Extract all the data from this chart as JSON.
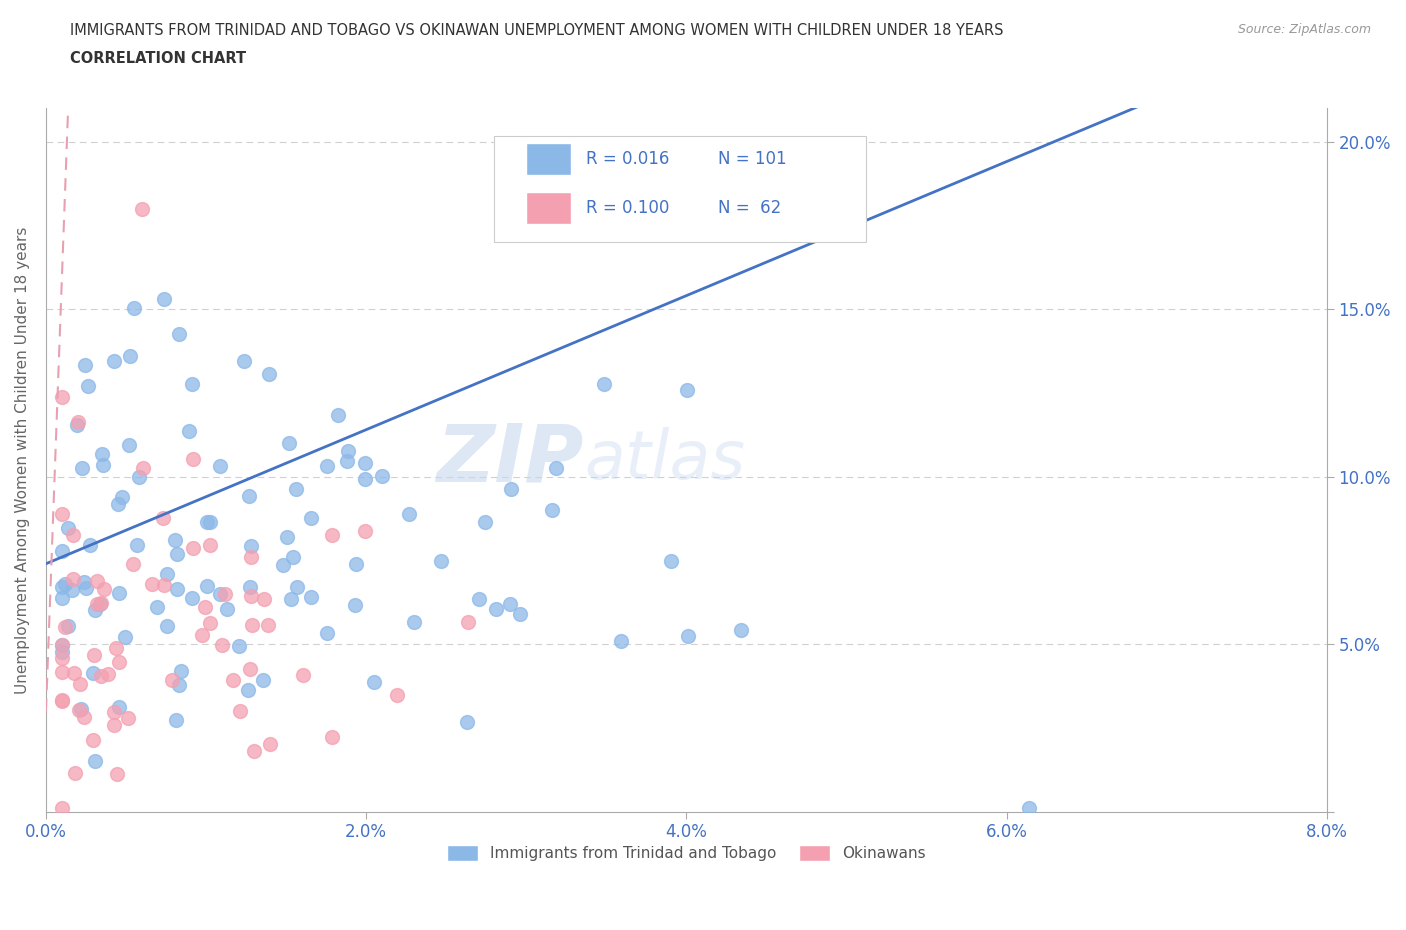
{
  "title_line1": "IMMIGRANTS FROM TRINIDAD AND TOBAGO VS OKINAWAN UNEMPLOYMENT AMONG WOMEN WITH CHILDREN UNDER 18 YEARS",
  "title_line2": "CORRELATION CHART",
  "source_text": "Source: ZipAtlas.com",
  "ylabel": "Unemployment Among Women with Children Under 18 years",
  "xlim": [
    0.0,
    0.08
  ],
  "ylim": [
    0.0,
    0.21
  ],
  "xticks": [
    0.0,
    0.02,
    0.04,
    0.06,
    0.08
  ],
  "xtick_labels": [
    "0.0%",
    "2.0%",
    "4.0%",
    "6.0%",
    "8.0%"
  ],
  "yticks": [
    0.0,
    0.05,
    0.1,
    0.15,
    0.2
  ],
  "ytick_labels": [
    "",
    "5.0%",
    "10.0%",
    "15.0%",
    "20.0%"
  ],
  "watermark_left": "ZIP",
  "watermark_right": "atlas",
  "series1_color": "#8cb8e8",
  "series2_color": "#f4a0b0",
  "series1_label": "Immigrants from Trinidad and Tobago",
  "series2_label": "Okinawans",
  "legend_r1": "R = 0.016",
  "legend_n1": "N = 101",
  "legend_r2": "R = 0.100",
  "legend_n2": "N =  62",
  "title_color": "#333333",
  "axis_label_color": "#4472c4",
  "trend_color1": "#4472c4",
  "trend_color2": "#e8a0b0",
  "grid_color": "#d0d0d0",
  "trend1_slope": 2.0,
  "trend1_intercept": 0.074,
  "trend2_slope": 130.0,
  "trend2_intercept": 0.03
}
